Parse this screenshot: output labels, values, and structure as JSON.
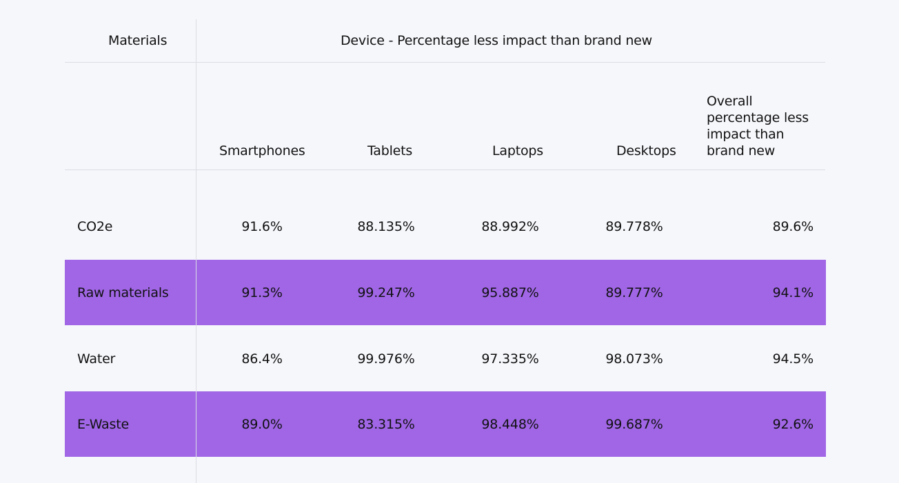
{
  "table": {
    "header": {
      "materials": "Materials",
      "device_group": "Device - Percentage less impact than brand new"
    },
    "columns": {
      "smartphones": "Smartphones",
      "tablets": "Tablets",
      "laptops": "Laptops",
      "desktops": "Desktops",
      "overall": "Overall percentage less impact than brand new"
    },
    "rows": [
      {
        "label": "CO2e",
        "smartphones": "91.6%",
        "tablets": "88.135%",
        "laptops": "88.992%",
        "desktops": "89.778%",
        "overall": "89.6%",
        "highlighted": false
      },
      {
        "label": "Raw materials",
        "smartphones": "91.3%",
        "tablets": "99.247%",
        "laptops": "95.887%",
        "desktops": "89.777%",
        "overall": "94.1%",
        "highlighted": true
      },
      {
        "label": "Water",
        "smartphones": "86.4%",
        "tablets": "99.976%",
        "laptops": "97.335%",
        "desktops": "98.073%",
        "overall": "94.5%",
        "highlighted": false
      },
      {
        "label": "E-Waste",
        "smartphones": "89.0%",
        "tablets": "83.315%",
        "laptops": "98.448%",
        "desktops": "99.687%",
        "overall": "92.6%",
        "highlighted": true
      }
    ],
    "highlight_color": "#a066e6"
  }
}
